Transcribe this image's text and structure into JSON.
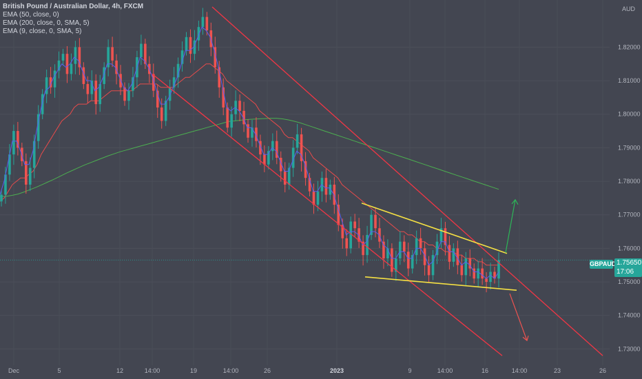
{
  "chart_data": {
    "type": "candlestick",
    "title": "British Pound / Australian Dollar, 4h, FXCM",
    "indicators": [
      "EMA (50, close, 0)",
      "EMA (200, close, 0, SMA, 5)",
      "EMA (9, close, 0, SMA, 5)"
    ],
    "currency_label": "AUD",
    "symbol": "GBPAUD",
    "last_price": "1.75650",
    "countdown": "17:06",
    "y_ticks": [
      "1.82000",
      "1.81000",
      "1.80000",
      "1.79000",
      "1.78000",
      "1.77000",
      "1.76000",
      "1.75000",
      "1.74000",
      "1.73000"
    ],
    "ylim": [
      1.727,
      1.832
    ],
    "x_ticks": [
      "Dec",
      "5",
      "12",
      "14:00",
      "19",
      "14:00",
      "26",
      "2023",
      "9",
      "14:00",
      "16",
      "14:00",
      "23",
      "26"
    ],
    "x_tick_bold": "2023",
    "close_series": [
      1.776,
      1.782,
      1.788,
      1.795,
      1.79,
      1.786,
      1.779,
      1.784,
      1.792,
      1.8,
      1.806,
      1.811,
      1.808,
      1.813,
      1.816,
      1.818,
      1.812,
      1.815,
      1.82,
      1.814,
      1.809,
      1.806,
      1.81,
      1.803,
      1.809,
      1.814,
      1.82,
      1.816,
      1.812,
      1.808,
      1.804,
      1.807,
      1.811,
      1.817,
      1.821,
      1.815,
      1.812,
      1.807,
      1.802,
      1.798,
      1.804,
      1.808,
      1.811,
      1.815,
      1.819,
      1.823,
      1.818,
      1.822,
      1.826,
      1.829,
      1.825,
      1.82,
      1.814,
      1.808,
      1.802,
      1.796,
      1.8,
      1.804,
      1.801,
      1.797,
      1.793,
      1.796,
      1.792,
      1.788,
      1.785,
      1.789,
      1.792,
      1.787,
      1.783,
      1.779,
      1.784,
      1.79,
      1.794,
      1.786,
      1.781,
      1.777,
      1.773,
      1.777,
      1.781,
      1.776,
      1.779,
      1.773,
      1.767,
      1.763,
      1.76,
      1.768,
      1.766,
      1.762,
      1.758,
      1.764,
      1.77,
      1.766,
      1.762,
      1.757,
      1.76,
      1.753,
      1.757,
      1.762,
      1.759,
      1.754,
      1.758,
      1.763,
      1.76,
      1.755,
      1.752,
      1.758,
      1.762,
      1.766,
      1.761,
      1.756,
      1.76,
      1.755,
      1.752,
      1.757,
      1.754,
      1.751,
      1.754,
      1.751,
      1.75,
      1.753,
      1.751,
      1.7565
    ],
    "ema_9": [
      1.776,
      1.78,
      1.786,
      1.792,
      1.792,
      1.789,
      1.785,
      1.785,
      1.789,
      1.796,
      1.802,
      1.807,
      1.808,
      1.811,
      1.813,
      1.815,
      1.814,
      1.815,
      1.817,
      1.816,
      1.813,
      1.81,
      1.81,
      1.807,
      1.808,
      1.811,
      1.815,
      1.815,
      1.814,
      1.811,
      1.808,
      1.807,
      1.809,
      1.813,
      1.817,
      1.816,
      1.814,
      1.811,
      1.807,
      1.803,
      1.803,
      1.805,
      1.808,
      1.811,
      1.815,
      1.819,
      1.819,
      1.82,
      1.823,
      1.826,
      1.825,
      1.823,
      1.819,
      1.814,
      1.808,
      1.802,
      1.801,
      1.802,
      1.801,
      1.799,
      1.796,
      1.796,
      1.794,
      1.791,
      1.788,
      1.788,
      1.79,
      1.789,
      1.786,
      1.783,
      1.783,
      1.786,
      1.789,
      1.788,
      1.785,
      1.781,
      1.777,
      1.777,
      1.779,
      1.778,
      1.778,
      1.776,
      1.772,
      1.768,
      1.764,
      1.765,
      1.765,
      1.764,
      1.761,
      1.762,
      1.765,
      1.765,
      1.764,
      1.761,
      1.76,
      1.757,
      1.757,
      1.759,
      1.759,
      1.757,
      1.757,
      1.76,
      1.76,
      1.758,
      1.755,
      1.756,
      1.759,
      1.762,
      1.762,
      1.759,
      1.759,
      1.757,
      1.755,
      1.756,
      1.755,
      1.753,
      1.753,
      1.752,
      1.751,
      1.752,
      1.751,
      1.753
    ],
    "ema_50": [
      1.774,
      1.775,
      1.777,
      1.779,
      1.78,
      1.781,
      1.781,
      1.782,
      1.783,
      1.785,
      1.788,
      1.79,
      1.792,
      1.794,
      1.796,
      1.798,
      1.799,
      1.8,
      1.802,
      1.803,
      1.803,
      1.803,
      1.804,
      1.804,
      1.804,
      1.805,
      1.806,
      1.807,
      1.807,
      1.807,
      1.807,
      1.807,
      1.807,
      1.808,
      1.809,
      1.809,
      1.809,
      1.809,
      1.809,
      1.808,
      1.808,
      1.808,
      1.808,
      1.809,
      1.81,
      1.811,
      1.811,
      1.812,
      1.813,
      1.814,
      1.815,
      1.815,
      1.814,
      1.813,
      1.812,
      1.81,
      1.809,
      1.808,
      1.807,
      1.806,
      1.805,
      1.804,
      1.803,
      1.801,
      1.8,
      1.799,
      1.798,
      1.797,
      1.796,
      1.794,
      1.793,
      1.793,
      1.792,
      1.791,
      1.79,
      1.789,
      1.787,
      1.786,
      1.785,
      1.784,
      1.783,
      1.782,
      1.781,
      1.779,
      1.778,
      1.777,
      1.776,
      1.775,
      1.774,
      1.773,
      1.772,
      1.771,
      1.77,
      1.769,
      1.768,
      1.767,
      1.766,
      1.765,
      1.765,
      1.764,
      1.764,
      1.763,
      1.762,
      1.762,
      1.761,
      1.761,
      1.76,
      1.76,
      1.759,
      1.759,
      1.759,
      1.758,
      1.758,
      1.757,
      1.757,
      1.757,
      1.756,
      1.756,
      1.755,
      1.755,
      1.755,
      1.755
    ],
    "ema_200": [
      1.7755,
      1.7755,
      1.7758,
      1.7762,
      1.7768,
      1.7775,
      1.7782,
      1.779,
      1.7798,
      1.7806,
      1.7815,
      1.7824,
      1.7832,
      1.784,
      1.7848,
      1.7855,
      1.7862,
      1.7869,
      1.7876,
      1.7882,
      1.7888,
      1.7893,
      1.7898,
      1.7903,
      1.7908,
      1.7913,
      1.7918,
      1.7923,
      1.7928,
      1.7933,
      1.7938,
      1.7943,
      1.7948,
      1.7953,
      1.7958,
      1.7963,
      1.7968,
      1.7973,
      1.7978,
      1.798,
      1.7982,
      1.7984,
      1.7985,
      1.7986,
      1.7987,
      1.7988,
      1.7988,
      1.7986,
      1.7983,
      1.7979,
      1.7974,
      1.7968,
      1.7962,
      1.7956,
      1.795,
      1.7944,
      1.7938,
      1.7932,
      1.7926,
      1.792,
      1.7914,
      1.7908,
      1.7902,
      1.7896,
      1.789,
      1.7884,
      1.7878,
      1.7872,
      1.7866,
      1.786,
      1.7854,
      1.7848,
      1.7842,
      1.7836,
      1.783,
      1.7824,
      1.7818,
      1.7812,
      1.7806,
      1.78,
      1.7794,
      1.7788,
      1.7782,
      1.7776
    ],
    "channel": {
      "upper": [
        [
          "2022-12-20",
          1.832
        ],
        [
          "2023-01-26",
          1.728
        ]
      ],
      "lower": [
        [
          "2022-12-14",
          1.812
        ],
        [
          "2023-01-17",
          1.728
        ]
      ]
    },
    "wedge": {
      "top": [
        1.7735,
        1.7585
      ],
      "bottom": [
        1.7515,
        1.7475
      ]
    },
    "scenarios": [
      {
        "direction": "up",
        "target": 1.7745
      },
      {
        "direction": "down",
        "target": 1.7325
      }
    ],
    "colors": {
      "background": "#434651",
      "up": "#26a69a",
      "down": "#ef5350",
      "channel": "#f23645",
      "wedge": "#f5e043",
      "ema_9": "#5b5ef0",
      "ema_50": "#e84b4b",
      "ema_200": "#4caf50",
      "arrow_up": "#2db558",
      "arrow_down": "#ef5350",
      "price_line": "#26a69a"
    }
  }
}
